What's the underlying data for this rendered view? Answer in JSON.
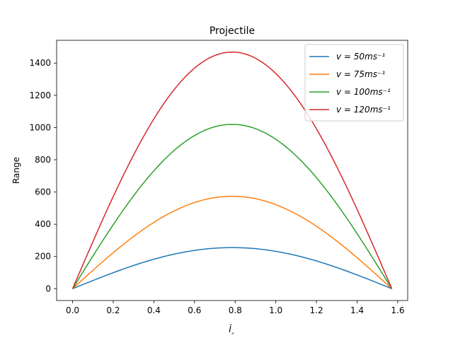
{
  "chart_data": {
    "type": "line",
    "title": "Projectile",
    "xlabel": "Î¸",
    "ylabel": "Range",
    "xlim": [
      -0.0785,
      1.649
    ],
    "ylim": [
      -73.4,
      1541.5
    ],
    "x_ticks": [
      0.0,
      0.2,
      0.4,
      0.6,
      0.8,
      1.0,
      1.2,
      1.4,
      1.6
    ],
    "x_tick_labels": [
      "0.0",
      "0.2",
      "0.4",
      "0.6",
      "0.8",
      "1.0",
      "1.2",
      "1.4",
      "1.6"
    ],
    "y_ticks": [
      0,
      200,
      400,
      600,
      800,
      1000,
      1200,
      1400
    ],
    "y_tick_labels": [
      "0",
      "200",
      "400",
      "600",
      "800",
      "1000",
      "1200",
      "1400"
    ],
    "legend_position": "top-right",
    "grid": false,
    "x": [
      0.0,
      0.0785,
      0.1571,
      0.2356,
      0.3142,
      0.3927,
      0.4712,
      0.5498,
      0.6283,
      0.7069,
      0.7854,
      0.8639,
      0.9425,
      1.021,
      1.0996,
      1.1781,
      1.2566,
      1.3352,
      1.4137,
      1.4923,
      1.5708
    ],
    "series": [
      {
        "name": "v = 50ms⁻¹",
        "color": "#1f77b4",
        "values": [
          0.0,
          39.9,
          78.8,
          115.8,
          149.9,
          180.4,
          206.4,
          227.3,
          242.5,
          251.8,
          255.0,
          251.8,
          242.5,
          227.3,
          206.4,
          180.4,
          149.9,
          115.8,
          78.8,
          39.9,
          0.0
        ]
      },
      {
        "name": "v = 75ms⁻¹",
        "color": "#ff7f0e",
        "values": [
          0.0,
          89.8,
          177.3,
          260.5,
          337.2,
          405.8,
          464.4,
          511.4,
          545.7,
          566.6,
          573.7,
          566.6,
          545.7,
          511.4,
          464.4,
          405.8,
          337.2,
          260.5,
          177.3,
          89.8,
          0.0
        ]
      },
      {
        "name": "v = 100ms⁻¹",
        "color": "#2ca02c",
        "values": [
          0.0,
          159.6,
          315.2,
          463.1,
          599.5,
          721.4,
          825.6,
          909.2,
          970.1,
          1007.2,
          1019.9,
          1007.2,
          970.1,
          909.2,
          825.6,
          721.4,
          599.5,
          463.1,
          315.2,
          159.6,
          0.0
        ]
      },
      {
        "name": "v = 120ms⁻¹",
        "color": "#d62728",
        "values": [
          0.0,
          229.8,
          453.9,
          666.8,
          863.3,
          1038.8,
          1188.9,
          1309.2,
          1396.9,
          1450.4,
          1468.6,
          1450.4,
          1396.9,
          1309.2,
          1188.9,
          1038.8,
          863.3,
          666.8,
          453.9,
          229.8,
          0.0
        ]
      }
    ]
  }
}
